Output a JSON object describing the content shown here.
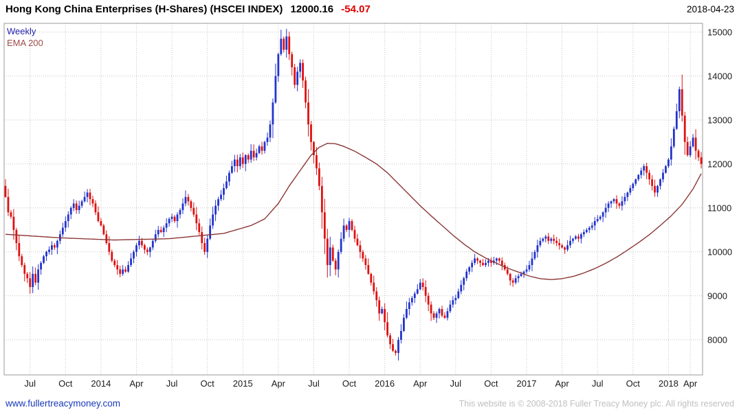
{
  "header": {
    "title": "Hong Kong China Enterprises (H-Shares) (HSCEI INDEX)",
    "last_price": "12000.16",
    "change": "-54.07",
    "date": "2018-04-23"
  },
  "legend": {
    "timeframe": "Weekly",
    "overlay": "EMA 200"
  },
  "footer": {
    "website": "www.fullertreacymoney.com",
    "copyright": "This website is © 2008-2018 Fuller Treacy Money plc. All rights reserved"
  },
  "colors": {
    "background": "#ffffff",
    "title_text": "#000000",
    "change_negative": "#dd0000",
    "legend_weekly": "#2222aa",
    "legend_ema": "#a04a4a",
    "up": "#2233cc",
    "down": "#dd1111",
    "ema": "#8b3535",
    "grid": "#c4c4c4",
    "border": "#9a9a9a",
    "axis_text": "#1a1a1a",
    "link": "#1a3ab8",
    "copyright": "#c0c0c0"
  },
  "chart_data": {
    "type": "candlestick",
    "instrument": "Hong Kong China Enterprises (H-Shares) (HSCEI INDEX)",
    "timeframe": "Weekly",
    "overlay": "EMA 200",
    "as_of_date": "2018-04-23",
    "last_close": 12000.16,
    "change": -54.07,
    "ylim": [
      7200,
      15200
    ],
    "y_ticks": [
      8000,
      9000,
      10000,
      11000,
      12000,
      13000,
      14000,
      15000
    ],
    "x_ticks": [
      {
        "week": 9,
        "label": "Jul"
      },
      {
        "week": 22,
        "label": "Oct"
      },
      {
        "week": 35,
        "label": "2014"
      },
      {
        "week": 48,
        "label": "Apr"
      },
      {
        "week": 61,
        "label": "Jul"
      },
      {
        "week": 74,
        "label": "Oct"
      },
      {
        "week": 87,
        "label": "2015"
      },
      {
        "week": 100,
        "label": "Apr"
      },
      {
        "week": 113,
        "label": "Jul"
      },
      {
        "week": 126,
        "label": "Oct"
      },
      {
        "week": 139,
        "label": "2016"
      },
      {
        "week": 152,
        "label": "Apr"
      },
      {
        "week": 165,
        "label": "Jul"
      },
      {
        "week": 178,
        "label": "Oct"
      },
      {
        "week": 191,
        "label": "2017"
      },
      {
        "week": 204,
        "label": "Apr"
      },
      {
        "week": 217,
        "label": "Jul"
      },
      {
        "week": 230,
        "label": "Oct"
      },
      {
        "week": 243,
        "label": "2018"
      },
      {
        "week": 251,
        "label": "Apr"
      }
    ],
    "first_open": 11500,
    "closes": [
      11250,
      10900,
      10800,
      10500,
      10200,
      9900,
      9700,
      9500,
      9400,
      9200,
      9500,
      9300,
      9600,
      9750,
      9900,
      10000,
      10050,
      10150,
      10100,
      10250,
      10400,
      10550,
      10700,
      10850,
      11000,
      11100,
      10950,
      11050,
      11150,
      11250,
      11350,
      11200,
      11100,
      10900,
      10700,
      10600,
      10400,
      10200,
      10000,
      9800,
      9700,
      9600,
      9500,
      9600,
      9550,
      9700,
      9850,
      10000,
      10150,
      10250,
      10150,
      10050,
      10000,
      10100,
      10250,
      10400,
      10500,
      10450,
      10550,
      10650,
      10750,
      10800,
      10700,
      10850,
      10950,
      11100,
      11250,
      11150,
      11000,
      10850,
      10650,
      10450,
      10200,
      10000,
      10300,
      10600,
      10850,
      11050,
      11200,
      11300,
      11450,
      11600,
      11800,
      11950,
      12100,
      11950,
      12150,
      12000,
      12200,
      12100,
      12300,
      12150,
      12250,
      12400,
      12300,
      12500,
      12600,
      12900,
      13400,
      14000,
      14500,
      14850,
      14600,
      14900,
      14500,
      14200,
      13800,
      14100,
      14300,
      13900,
      13400,
      12900,
      12500,
      12200,
      11900,
      11500,
      10900,
      10300,
      9700,
      10100,
      9800,
      9600,
      10000,
      10300,
      10600,
      10500,
      10700,
      10500,
      10300,
      10150,
      10000,
      9850,
      9700,
      9500,
      9300,
      9100,
      8900,
      8600,
      8700,
      8400,
      8100,
      7900,
      7750,
      7700,
      8000,
      8200,
      8500,
      8700,
      8850,
      8950,
      9050,
      9150,
      9300,
      9200,
      9000,
      8800,
      8600,
      8500,
      8600,
      8700,
      8550,
      8500,
      8650,
      8800,
      8900,
      8950,
      9100,
      9250,
      9400,
      9550,
      9650,
      9750,
      9850,
      9800,
      9750,
      9700,
      9750,
      9800,
      9750,
      9800,
      9850,
      9800,
      9700,
      9600,
      9500,
      9350,
      9300,
      9400,
      9450,
      9500,
      9550,
      9600,
      9700,
      9850,
      10000,
      10150,
      10250,
      10300,
      10350,
      10250,
      10300,
      10250,
      10200,
      10150,
      10100,
      10050,
      10150,
      10250,
      10300,
      10350,
      10300,
      10400,
      10450,
      10500,
      10550,
      10600,
      10700,
      10750,
      10800,
      10900,
      11000,
      11100,
      11150,
      11200,
      11100,
      11050,
      11150,
      11250,
      11350,
      11450,
      11550,
      11650,
      11750,
      11850,
      11950,
      11800,
      11650,
      11500,
      11350,
      11500,
      11650,
      11800,
      11950,
      12100,
      12400,
      12800,
      13200,
      13700,
      13100,
      12500,
      12200,
      12400,
      12600,
      12300,
      12150,
      12000.16
    ],
    "ema200_anchors": [
      [
        0,
        10400
      ],
      [
        20,
        10320
      ],
      [
        40,
        10270
      ],
      [
        60,
        10300
      ],
      [
        80,
        10420
      ],
      [
        90,
        10600
      ],
      [
        95,
        10750
      ],
      [
        100,
        11100
      ],
      [
        104,
        11500
      ],
      [
        108,
        11850
      ],
      [
        112,
        12200
      ],
      [
        115,
        12380
      ],
      [
        118,
        12470
      ],
      [
        121,
        12460
      ],
      [
        124,
        12400
      ],
      [
        128,
        12290
      ],
      [
        132,
        12150
      ],
      [
        136,
        12000
      ],
      [
        140,
        11800
      ],
      [
        144,
        11550
      ],
      [
        148,
        11300
      ],
      [
        152,
        11050
      ],
      [
        156,
        10820
      ],
      [
        160,
        10600
      ],
      [
        164,
        10380
      ],
      [
        168,
        10180
      ],
      [
        172,
        10000
      ],
      [
        176,
        9860
      ],
      [
        180,
        9740
      ],
      [
        184,
        9630
      ],
      [
        188,
        9540
      ],
      [
        192,
        9450
      ],
      [
        196,
        9390
      ],
      [
        200,
        9370
      ],
      [
        204,
        9390
      ],
      [
        208,
        9440
      ],
      [
        212,
        9520
      ],
      [
        216,
        9620
      ],
      [
        220,
        9740
      ],
      [
        224,
        9880
      ],
      [
        228,
        10040
      ],
      [
        232,
        10210
      ],
      [
        236,
        10390
      ],
      [
        240,
        10600
      ],
      [
        244,
        10820
      ],
      [
        248,
        11080
      ],
      [
        252,
        11430
      ],
      [
        255,
        11780
      ]
    ]
  }
}
